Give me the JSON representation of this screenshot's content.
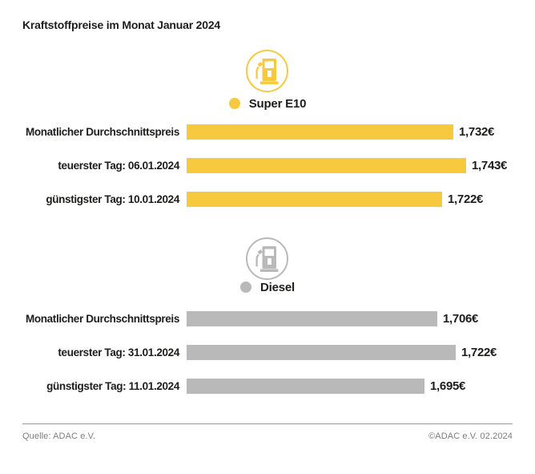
{
  "header": {
    "title": "Kraftstoffpreise im Monat Januar 2024"
  },
  "footer": {
    "source": "Quelle: ADAC e.V.",
    "copyright": "©ADAC e.V. 02.2024"
  },
  "colors": {
    "super_yellow": "#F7C93F",
    "diesel_gray": "#B9B9B9",
    "text_black": "#1D1D1B",
    "footer_gray": "#7E7E7E"
  },
  "chart_data": [
    {
      "type": "bar",
      "title": "Super E10",
      "legend": "Super E10",
      "icon": "fuel-pump-icon",
      "orientation": "horizontal",
      "bar_color": "#F7C93F",
      "xlim": [
        1.5,
        1.76
      ],
      "grid": false,
      "categories": [
        "Monatlicher Durchschnittspreis",
        "teuerster Tag: 06.01.2024",
        "günstigster Tag: 10.01.2024"
      ],
      "values": [
        1.732,
        1.743,
        1.722
      ],
      "value_labels": [
        "1,732€",
        "1,743€",
        "1,722€"
      ]
    },
    {
      "type": "bar",
      "title": "Diesel",
      "legend": "Diesel",
      "icon": "fuel-pump-icon",
      "orientation": "horizontal",
      "bar_color": "#B9B9B9",
      "xlim": [
        1.488,
        1.76
      ],
      "grid": false,
      "categories": [
        "Monatlicher Durchschnittspreis",
        "teuerster Tag: 31.01.2024",
        "günstigster Tag: 11.01.2024"
      ],
      "values": [
        1.706,
        1.722,
        1.695
      ],
      "value_labels": [
        "1,706€",
        "1,722€",
        "1,695€"
      ]
    }
  ]
}
